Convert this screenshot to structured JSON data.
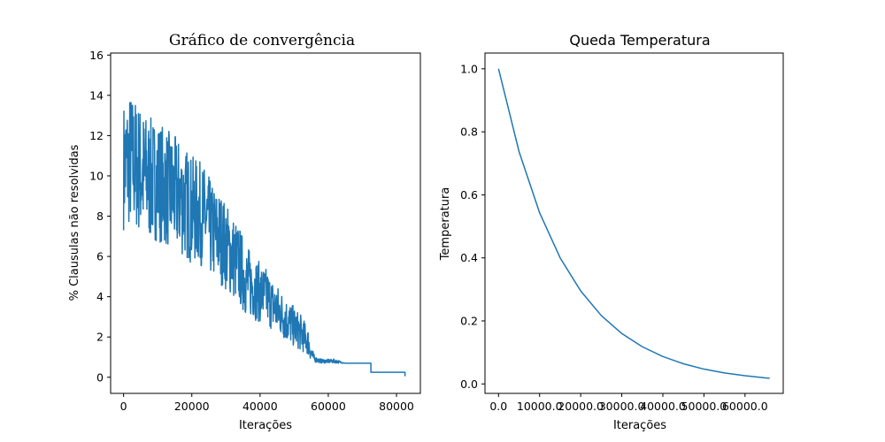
{
  "chart_data": [
    {
      "type": "line",
      "title": "Gráfico de convergência",
      "xlabel": "Iterações",
      "ylabel": "% Clausulas não resolvidas",
      "xlim": [
        -3800,
        87000
      ],
      "ylim": [
        -0.8,
        16.1
      ],
      "xticks": [
        0,
        20000,
        40000,
        60000,
        80000
      ],
      "yticks": [
        0,
        2,
        4,
        6,
        8,
        10,
        12,
        14,
        16
      ],
      "grid": false,
      "series": [
        {
          "color": "#1f77b4",
          "x": [
            0,
            2000,
            4000,
            6000,
            8000,
            10000,
            12000,
            14000,
            16000,
            18000,
            20000,
            22000,
            24000,
            26000,
            28000,
            30000,
            32000,
            34000,
            36000,
            38000,
            40000,
            42000,
            44000,
            46000,
            48000,
            50000,
            52000,
            54000,
            55000,
            56000,
            58000,
            60000,
            62000,
            65000,
            70000,
            72500,
            75000,
            80000,
            82500
          ],
          "y": [
            10.5,
            10.8,
            10.5,
            10.0,
            9.8,
            9.8,
            9.5,
            9.2,
            9.0,
            8.7,
            8.3,
            8.2,
            7.9,
            7.2,
            7.0,
            6.5,
            6.0,
            5.5,
            4.8,
            4.5,
            4.2,
            4.0,
            3.5,
            3.2,
            2.8,
            2.5,
            2.2,
            1.8,
            1.2,
            0.9,
            0.8,
            0.8,
            0.8,
            0.7,
            0.7,
            0.25,
            0.25,
            0.25,
            0.05
          ],
          "spread": [
            3.2,
            3.4,
            3.3,
            3.2,
            3.1,
            3.0,
            3.0,
            2.9,
            2.9,
            2.8,
            2.7,
            2.6,
            2.5,
            2.4,
            2.3,
            2.2,
            2.1,
            2.0,
            1.8,
            1.6,
            1.5,
            1.4,
            1.3,
            1.2,
            1.1,
            1.0,
            0.9,
            0.7,
            0.4,
            0.15,
            0.1,
            0.1,
            0.1,
            0,
            0,
            0,
            0,
            0,
            0
          ]
        }
      ]
    },
    {
      "type": "line",
      "title": "Queda Temperatura",
      "xlabel": "Iterações",
      "ylabel": "Temperatura",
      "xlim": [
        -3300,
        69300
      ],
      "ylim": [
        -0.03,
        1.05
      ],
      "xticks": [
        0,
        10000,
        20000,
        30000,
        40000,
        50000,
        60000
      ],
      "yticks": [
        0.0,
        0.2,
        0.4,
        0.6,
        0.8,
        1.0
      ],
      "grid": false,
      "series": [
        {
          "color": "#1f77b4",
          "x": [
            0,
            5000,
            10000,
            15000,
            20000,
            25000,
            30000,
            35000,
            40000,
            45000,
            50000,
            55000,
            60000,
            65000,
            66000
          ],
          "y": [
            1.0,
            0.737,
            0.543,
            0.4,
            0.295,
            0.217,
            0.16,
            0.118,
            0.087,
            0.064,
            0.047,
            0.035,
            0.026,
            0.019,
            0.018
          ]
        }
      ]
    }
  ]
}
